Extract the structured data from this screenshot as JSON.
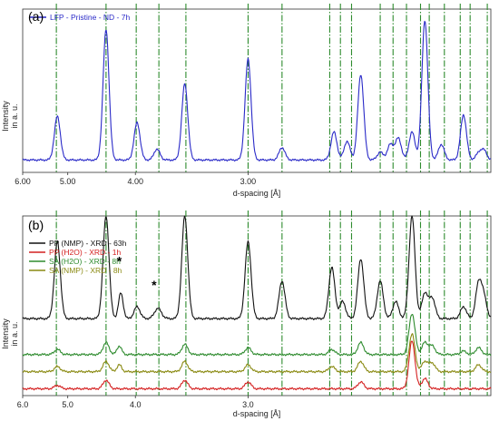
{
  "chart_data": [
    {
      "type": "line",
      "panel_label": "(a)",
      "xlabel": "d-spacing [Å]",
      "ylabel": [
        "Intensity",
        "in a. u."
      ],
      "x_ticks": [
        "6.00",
        "5.00",
        "4.00",
        "3.00"
      ],
      "x_tick_values": [
        6.0,
        5.0,
        4.0,
        3.0
      ],
      "xlim": [
        6.0,
        1.95
      ],
      "ylim": [
        0,
        1.05
      ],
      "x_scale": "reciprocal",
      "grid": false,
      "reference_lines": {
        "color": "#2e8b2e",
        "style": "dash-dot",
        "d": [
          5.22,
          4.38,
          3.99,
          3.74,
          3.48,
          3.0,
          2.79,
          2.54,
          2.49,
          2.44,
          2.32,
          2.27,
          2.22,
          2.17,
          2.14,
          2.09,
          2.04,
          2.01,
          1.96
        ]
      },
      "legend_position": "top-left",
      "series": [
        {
          "name": "LFP - Pristine - ND - 7h",
          "color": "#2a2ac8",
          "baseline": 0.08,
          "peaks": [
            {
              "d": 5.2,
              "height": 0.28
            },
            {
              "d": 4.38,
              "height": 0.84
            },
            {
              "d": 3.98,
              "height": 0.24
            },
            {
              "d": 3.76,
              "height": 0.07
            },
            {
              "d": 3.49,
              "height": 0.49
            },
            {
              "d": 3.0,
              "height": 0.65
            },
            {
              "d": 2.79,
              "height": 0.08
            },
            {
              "d": 2.52,
              "height": 0.18
            },
            {
              "d": 2.46,
              "height": 0.12
            },
            {
              "d": 2.4,
              "height": 0.55
            },
            {
              "d": 2.32,
              "height": 0.05
            },
            {
              "d": 2.28,
              "height": 0.1
            },
            {
              "d": 2.25,
              "height": 0.14
            },
            {
              "d": 2.2,
              "height": 0.18
            },
            {
              "d": 2.155,
              "height": 0.9
            },
            {
              "d": 2.1,
              "height": 0.1
            },
            {
              "d": 2.03,
              "height": 0.29
            },
            {
              "d": 1.985,
              "height": 0.04
            },
            {
              "d": 1.97,
              "height": 0.06
            }
          ]
        }
      ]
    },
    {
      "type": "line",
      "panel_label": "(b)",
      "xlabel": "d-spacing [Å]",
      "ylabel": [
        "Intensity",
        "in a. u."
      ],
      "x_ticks": [
        "6.0",
        "5.0",
        "4.0",
        "3.0"
      ],
      "x_tick_values": [
        6.0,
        5.0,
        4.0,
        3.0
      ],
      "xlim": [
        6.0,
        1.95
      ],
      "ylim": [
        0,
        1.05
      ],
      "x_scale": "reciprocal",
      "grid": false,
      "reference_lines": {
        "color": "#2e8b2e",
        "style": "dash-dot",
        "d": [
          5.22,
          4.38,
          3.99,
          3.74,
          3.48,
          3.0,
          2.79,
          2.54,
          2.49,
          2.44,
          2.32,
          2.27,
          2.22,
          2.17,
          2.14,
          2.09,
          2.04,
          2.01,
          1.96
        ]
      },
      "legend_position": "top-left",
      "annotations": [
        {
          "text": "*",
          "d": 4.2,
          "y": 0.76
        },
        {
          "text": "*",
          "d": 3.79,
          "y": 0.62
        }
      ],
      "series": [
        {
          "name": "PP (NMP) - XRD - 63h",
          "color": "#111111",
          "baseline": 0.45,
          "humps": [
            {
              "d": 4.18,
              "height": 0.15,
              "width": 0.06
            },
            {
              "d": 3.75,
              "height": 0.06,
              "width": 0.08
            }
          ],
          "peaks": [
            {
              "d": 5.2,
              "height": 0.45
            },
            {
              "d": 4.38,
              "height": 0.6
            },
            {
              "d": 3.98,
              "height": 0.07
            },
            {
              "d": 3.49,
              "height": 0.6
            },
            {
              "d": 3.0,
              "height": 0.45
            },
            {
              "d": 2.79,
              "height": 0.22
            },
            {
              "d": 2.53,
              "height": 0.3
            },
            {
              "d": 2.48,
              "height": 0.1
            },
            {
              "d": 2.4,
              "height": 0.35
            },
            {
              "d": 2.32,
              "height": 0.22
            },
            {
              "d": 2.26,
              "height": 0.1
            },
            {
              "d": 2.2,
              "height": 0.6
            },
            {
              "d": 2.155,
              "height": 0.15
            },
            {
              "d": 2.13,
              "height": 0.12
            },
            {
              "d": 2.03,
              "height": 0.07
            },
            {
              "d": 1.985,
              "height": 0.2
            },
            {
              "d": 1.97,
              "height": 0.12
            }
          ]
        },
        {
          "name": "PP (H2O) - XRD - 1h",
          "color": "#d42020",
          "baseline": 0.04,
          "humps": [],
          "peaks": [
            {
              "d": 5.2,
              "height": 0.02
            },
            {
              "d": 4.38,
              "height": 0.05
            },
            {
              "d": 3.49,
              "height": 0.05
            },
            {
              "d": 3.0,
              "height": 0.04
            },
            {
              "d": 2.4,
              "height": 0.04
            },
            {
              "d": 2.2,
              "height": 0.28
            },
            {
              "d": 2.155,
              "height": 0.06
            }
          ]
        },
        {
          "name": "SA (H2O) - XRD - 8h",
          "color": "#2e8b2e",
          "baseline": 0.24,
          "humps": [
            {
              "d": 4.2,
              "height": 0.05,
              "width": 0.06
            }
          ],
          "peaks": [
            {
              "d": 5.2,
              "height": 0.03
            },
            {
              "d": 4.38,
              "height": 0.07
            },
            {
              "d": 3.49,
              "height": 0.06
            },
            {
              "d": 3.0,
              "height": 0.04
            },
            {
              "d": 2.53,
              "height": 0.03
            },
            {
              "d": 2.4,
              "height": 0.07
            },
            {
              "d": 2.2,
              "height": 0.24
            },
            {
              "d": 2.155,
              "height": 0.07
            },
            {
              "d": 2.13,
              "height": 0.05
            },
            {
              "d": 2.03,
              "height": 0.02
            },
            {
              "d": 1.985,
              "height": 0.04
            }
          ]
        },
        {
          "name": "SA (NMP) - XRD - 8h",
          "color": "#8a8a12",
          "baseline": 0.14,
          "humps": [
            {
              "d": 4.2,
              "height": 0.04,
              "width": 0.06
            }
          ],
          "peaks": [
            {
              "d": 5.2,
              "height": 0.03
            },
            {
              "d": 4.38,
              "height": 0.06
            },
            {
              "d": 3.49,
              "height": 0.06
            },
            {
              "d": 3.0,
              "height": 0.04
            },
            {
              "d": 2.53,
              "height": 0.03
            },
            {
              "d": 2.4,
              "height": 0.06
            },
            {
              "d": 2.2,
              "height": 0.22
            },
            {
              "d": 2.155,
              "height": 0.06
            },
            {
              "d": 2.13,
              "height": 0.05
            },
            {
              "d": 1.985,
              "height": 0.04
            }
          ]
        }
      ]
    }
  ]
}
